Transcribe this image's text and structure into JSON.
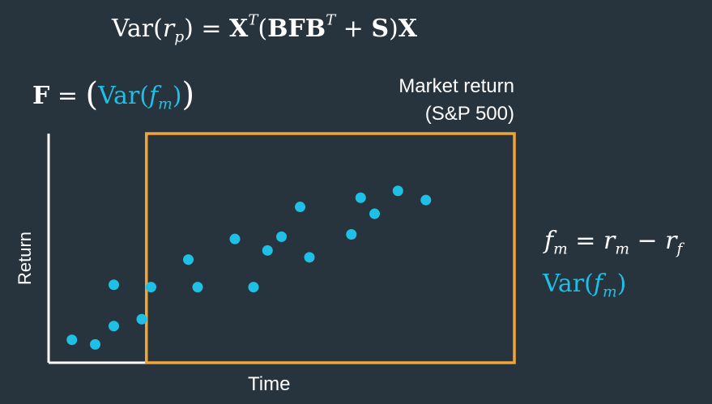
{
  "formulas": {
    "portfolio_variance": {
      "var": "Var",
      "r": "r",
      "p": "p",
      "eq": " = ",
      "X": "X",
      "T1": "T",
      "open": "(",
      "BFB": "BFB",
      "T2": "T",
      "plus": " + ",
      "S": "S",
      "close": ")",
      "X2": "X"
    },
    "factor_matrix": {
      "F": "F",
      "eq": " = ",
      "open": "(",
      "var": "Var(",
      "f": "f",
      "m": "m",
      "close_inner": ")",
      "close": ")"
    },
    "factor_definition": {
      "f": "f",
      "fm_sub": "m",
      "eq": " = ",
      "r": "r",
      "rm_sub": "m",
      "minus": " − ",
      "r2": "r",
      "rf_sub": "f"
    },
    "factor_variance": {
      "var": "Var(",
      "f": "f",
      "m": "m",
      "close": ")"
    }
  },
  "legend": {
    "line1": "Market return",
    "line2": "(S&P 500)"
  },
  "colors": {
    "background": "#27333d",
    "points": "#1fc0e6",
    "highlight_box": "#f0a436",
    "axes": "#ffffff"
  },
  "chart_data": {
    "type": "scatter",
    "xlabel": "Time",
    "ylabel": "Return",
    "xlim": [
      0,
      100
    ],
    "ylim": [
      0,
      100
    ],
    "grid": false,
    "highlight_range": {
      "x_start": 21,
      "x_end": 100
    },
    "x": [
      5,
      10,
      14,
      14,
      20,
      22,
      30,
      32,
      40,
      44,
      47,
      50,
      54,
      56,
      65,
      67,
      70,
      75,
      81
    ],
    "y": [
      10,
      8,
      34,
      16,
      19,
      33,
      45,
      33,
      54,
      33,
      49,
      55,
      68,
      46,
      56,
      72,
      65,
      75,
      71
    ]
  }
}
